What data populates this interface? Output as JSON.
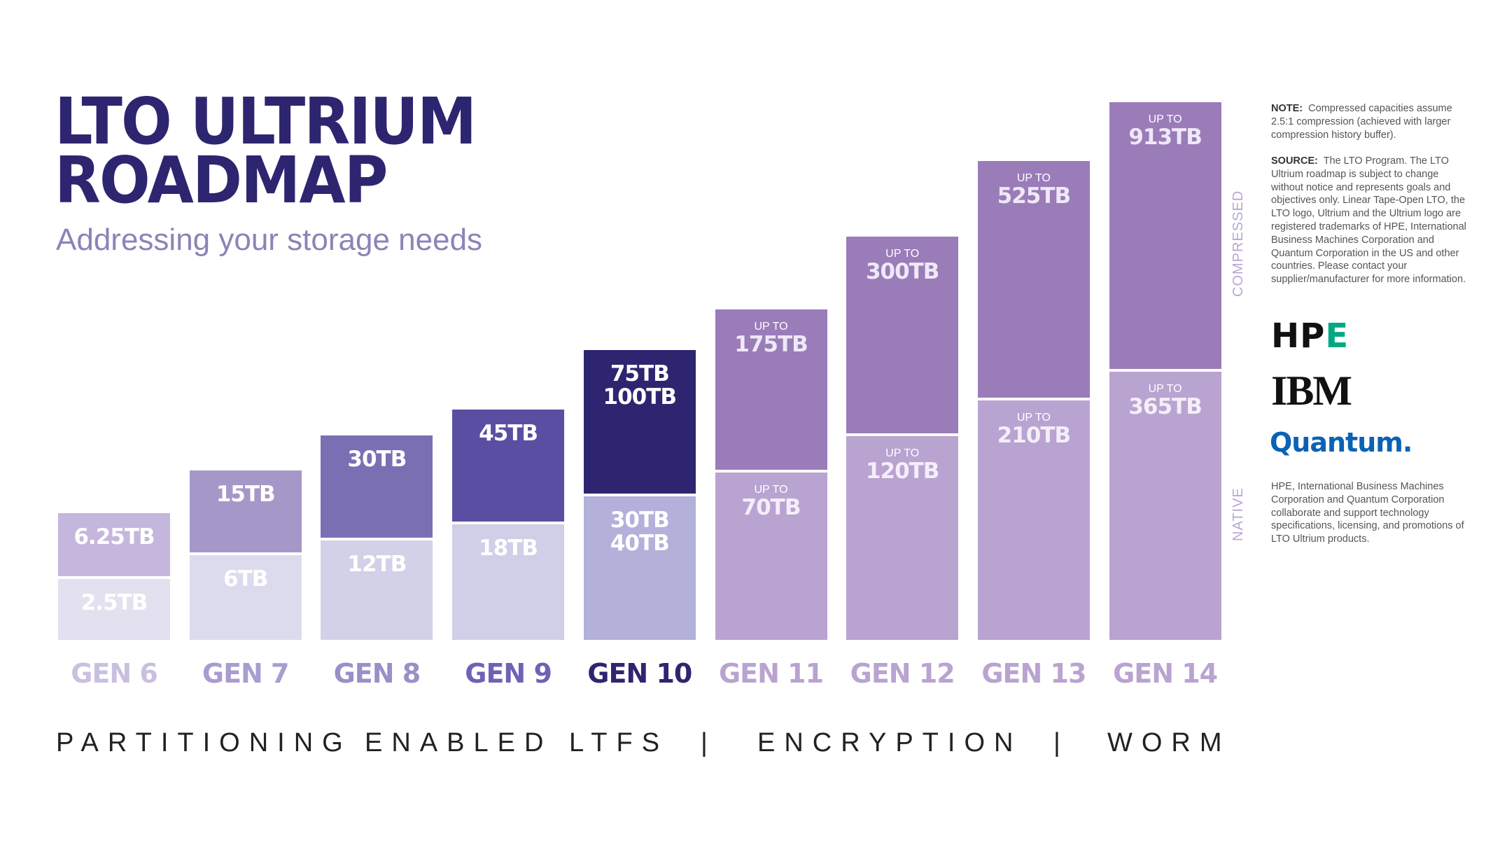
{
  "title_lines": [
    "LTO ULTRIUM",
    "ROADMAP"
  ],
  "subtitle": "Addressing your storage needs",
  "chart_data": {
    "type": "bar",
    "stacked": true,
    "categories": [
      "GEN 6",
      "GEN 7",
      "GEN 8",
      "GEN 9",
      "GEN 10",
      "GEN 11",
      "GEN 12",
      "GEN 13",
      "GEN 14"
    ],
    "series": [
      {
        "name": "NATIVE",
        "labels": [
          [
            "2.5TB"
          ],
          [
            "6TB"
          ],
          [
            "12TB"
          ],
          [
            "18TB"
          ],
          [
            "30TB",
            "40TB"
          ],
          [
            "UP TO",
            "70TB"
          ],
          [
            "UP TO",
            "120TB"
          ],
          [
            "UP TO",
            "210TB"
          ],
          [
            "UP TO",
            "365TB"
          ]
        ],
        "values_tb": [
          2.5,
          6,
          12,
          18,
          40,
          70,
          120,
          210,
          365
        ]
      },
      {
        "name": "COMPRESSED",
        "labels": [
          [
            "6.25TB"
          ],
          [
            "15TB"
          ],
          [
            "30TB"
          ],
          [
            "45TB"
          ],
          [
            "75TB",
            "100TB"
          ],
          [
            "UP TO",
            "175TB"
          ],
          [
            "UP TO",
            "300TB"
          ],
          [
            "UP TO",
            "525TB"
          ],
          [
            "UP TO",
            "913TB"
          ]
        ],
        "values_tb": [
          6.25,
          15,
          30,
          45,
          100,
          175,
          300,
          525,
          913
        ]
      }
    ],
    "colors": {
      "compressed": [
        "#c4b6dc",
        "#a598c8",
        "#7b6fb4",
        "#5a4ea3",
        "#2e2570",
        "#9a7cb9",
        "#9a7cb9",
        "#9a7cb9",
        "#9a7cb9"
      ],
      "native": [
        "#e3e0f0",
        "#dcdbee",
        "#d2d1e8",
        "#d0cfe7",
        "#b3b0da",
        "#b9a3d1",
        "#b9a3d1",
        "#b9a3d1",
        "#b9a3d1"
      ],
      "category_labels": [
        "#c9c0e0",
        "#a99cd0",
        "#9a8fc8",
        "#6e62b4",
        "#2e2570",
        "#b9a3d1",
        "#b9a3d1",
        "#b9a3d1",
        "#b9a3d1"
      ]
    },
    "axis_labels": {
      "compressed": "COMPRESSED",
      "native": "NATIVE"
    }
  },
  "features": [
    "PARTITIONING",
    "ENABLED LTFS",
    "|",
    "ENCRYPTION",
    "|",
    "WORM"
  ],
  "note": {
    "label": "NOTE:",
    "text": "Compressed capacities assume 2.5:1 compression (achieved with larger compression history buffer)."
  },
  "source": {
    "label": "SOURCE:",
    "text": "The LTO Program. The LTO Ultrium roadmap is subject to change without notice and represents goals and objectives only. Linear Tape-Open LTO, the LTO logo, Ultrium and the Ultrium logo are registered trademarks of HPE, International Business Machines Corporation and Quantum Corporation in the US and other countries. Please contact your supplier/manufacturer for more information."
  },
  "logos": {
    "hpe": "HPE",
    "ibm": "IBM",
    "quantum": "Quantum."
  },
  "collab_text": "HPE, International Business Machines Corporation and Quantum Corporation collaborate and support technology specifications, licensing, and promotions of LTO Ultrium products."
}
